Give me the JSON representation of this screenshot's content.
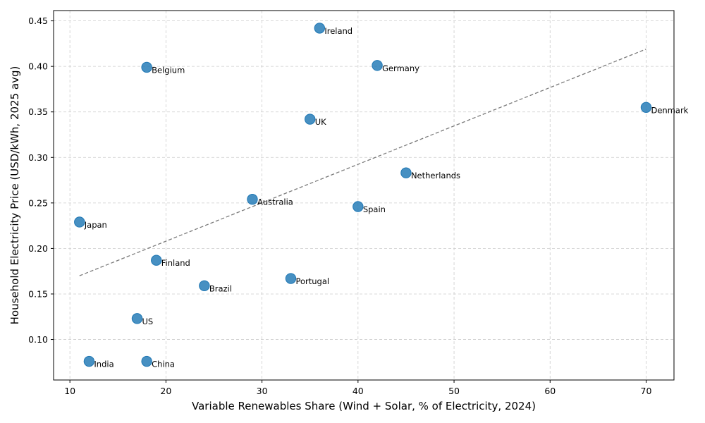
{
  "chart_data": {
    "type": "scatter",
    "title": "",
    "xlabel": "Variable Renewables Share (Wind + Solar, % of Electricity, 2024)",
    "ylabel": "Household Electricity Price (USD/kWh, 2025 avg)",
    "xlim": [
      8.3,
      72.9
    ],
    "ylim": [
      0.0555,
      0.4613
    ],
    "xticks": [
      10,
      20,
      30,
      40,
      50,
      60,
      70
    ],
    "yticks": [
      0.1,
      0.15,
      0.2,
      0.25,
      0.3,
      0.35,
      0.4,
      0.45
    ],
    "xtick_labels": [
      "10",
      "20",
      "30",
      "40",
      "50",
      "60",
      "70"
    ],
    "ytick_labels": [
      "0.10",
      "0.15",
      "0.20",
      "0.25",
      "0.30",
      "0.35",
      "0.40",
      "0.45"
    ],
    "grid": true,
    "marker_color": "#1f77b4",
    "trend_color": "#7a7a7a",
    "points": [
      {
        "label": "Ireland",
        "x": 36,
        "y": 0.442
      },
      {
        "label": "Belgium",
        "x": 18,
        "y": 0.399
      },
      {
        "label": "Germany",
        "x": 42,
        "y": 0.401
      },
      {
        "label": "Denmark",
        "x": 70,
        "y": 0.355
      },
      {
        "label": "UK",
        "x": 35,
        "y": 0.342
      },
      {
        "label": "Netherlands",
        "x": 45,
        "y": 0.283
      },
      {
        "label": "Australia",
        "x": 29,
        "y": 0.254
      },
      {
        "label": "Spain",
        "x": 40,
        "y": 0.246
      },
      {
        "label": "Japan",
        "x": 11,
        "y": 0.229
      },
      {
        "label": "Finland",
        "x": 19,
        "y": 0.187
      },
      {
        "label": "Portugal",
        "x": 33,
        "y": 0.167
      },
      {
        "label": "Brazil",
        "x": 24,
        "y": 0.159
      },
      {
        "label": "US",
        "x": 17,
        "y": 0.123
      },
      {
        "label": "India",
        "x": 12,
        "y": 0.076
      },
      {
        "label": "China",
        "x": 18,
        "y": 0.076
      }
    ],
    "trendline": {
      "x": [
        11,
        70
      ],
      "y": [
        0.17,
        0.419
      ]
    }
  }
}
